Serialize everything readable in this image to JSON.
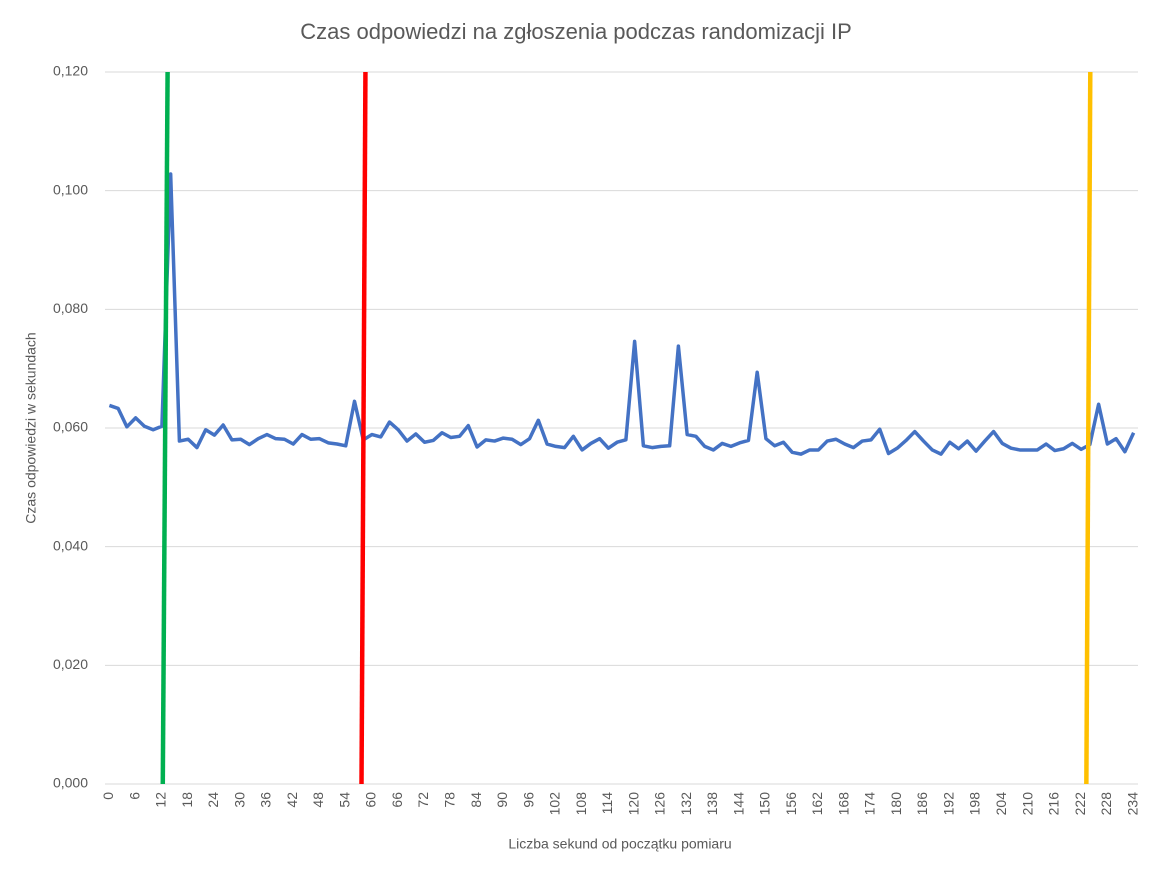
{
  "chart_data": {
    "type": "line",
    "title": "Czas odpowiedzi na zgłoszenia podczas randomizacji IP",
    "x_label": "Liczba sekund od początku pomiaru",
    "y_label": "Czas odpowiedzi w sekundach",
    "x": [
      0,
      2,
      4,
      6,
      8,
      10,
      12,
      14,
      16,
      18,
      20,
      22,
      24,
      26,
      28,
      30,
      32,
      34,
      36,
      38,
      40,
      42,
      44,
      46,
      48,
      50,
      52,
      54,
      56,
      58,
      60,
      62,
      64,
      66,
      68,
      70,
      72,
      74,
      76,
      78,
      80,
      82,
      84,
      86,
      88,
      90,
      92,
      94,
      96,
      98,
      100,
      102,
      104,
      106,
      108,
      110,
      112,
      114,
      116,
      118,
      120,
      122,
      124,
      126,
      128,
      130,
      132,
      134,
      136,
      138,
      140,
      142,
      144,
      146,
      148,
      150,
      152,
      154,
      156,
      158,
      160,
      162,
      164,
      166,
      168,
      170,
      172,
      174,
      176,
      178,
      180,
      182,
      184,
      186,
      188,
      190,
      192,
      194,
      196,
      198,
      200,
      202,
      204,
      206,
      208,
      210,
      212,
      214,
      216,
      218,
      220,
      222,
      224,
      226,
      228,
      230,
      232,
      234
    ],
    "series": [
      {
        "color": "#4472c4",
        "values": [
          0.0638,
          0.0633,
          0.0602,
          0.0617,
          0.0603,
          0.0597,
          0.0603,
          0.1028,
          0.0578,
          0.0581,
          0.0567,
          0.0597,
          0.0588,
          0.0605,
          0.058,
          0.0581,
          0.0572,
          0.0582,
          0.0589,
          0.0582,
          0.0581,
          0.0573,
          0.0589,
          0.0581,
          0.0582,
          0.0575,
          0.0573,
          0.057,
          0.0645,
          0.058,
          0.0589,
          0.0585,
          0.061,
          0.0597,
          0.0578,
          0.059,
          0.0576,
          0.0579,
          0.0592,
          0.0584,
          0.0586,
          0.0604,
          0.0568,
          0.058,
          0.0578,
          0.0583,
          0.0581,
          0.0572,
          0.0582,
          0.0613,
          0.0573,
          0.0569,
          0.0567,
          0.0586,
          0.0563,
          0.0574,
          0.0582,
          0.0566,
          0.0576,
          0.058,
          0.0746,
          0.057,
          0.0567,
          0.0569,
          0.057,
          0.0738,
          0.0589,
          0.0586,
          0.0569,
          0.0563,
          0.0574,
          0.0569,
          0.0575,
          0.0579,
          0.0694,
          0.0582,
          0.057,
          0.0576,
          0.0559,
          0.0556,
          0.0563,
          0.0563,
          0.0578,
          0.0581,
          0.0573,
          0.0567,
          0.0578,
          0.058,
          0.0598,
          0.0557,
          0.0566,
          0.0579,
          0.0594,
          0.0578,
          0.0563,
          0.0556,
          0.0576,
          0.0565,
          0.0578,
          0.0561,
          0.0578,
          0.0594,
          0.0574,
          0.0566,
          0.0563,
          0.0563,
          0.0563,
          0.0573,
          0.0562,
          0.0565,
          0.0574,
          0.0564,
          0.0572,
          0.064,
          0.0573,
          0.0582,
          0.056,
          0.0592
        ]
      }
    ],
    "markers": [
      {
        "color": "#00b050",
        "x": [
          12.2,
          13.3
        ],
        "y": [
          0,
          0.12
        ]
      },
      {
        "color": "#ff0000",
        "x": [
          57.6,
          58.5
        ],
        "y": [
          0,
          0.12
        ]
      },
      {
        "color": "#ffc000",
        "x": [
          223.2,
          224.1
        ],
        "y": [
          0,
          0.12
        ]
      }
    ],
    "xlim": [
      -1,
      235
    ],
    "xticks": [
      0,
      6,
      12,
      18,
      24,
      30,
      36,
      42,
      48,
      54,
      60,
      66,
      72,
      78,
      84,
      90,
      96,
      102,
      108,
      114,
      120,
      126,
      132,
      138,
      144,
      150,
      156,
      162,
      168,
      174,
      180,
      186,
      192,
      198,
      204,
      210,
      216,
      222,
      228,
      234
    ],
    "ylim": [
      0,
      0.12
    ],
    "yticks": [
      {
        "value": 0,
        "label": "0,000"
      },
      {
        "value": 0.02,
        "label": "0,020"
      },
      {
        "value": 0.04,
        "label": "0,040"
      },
      {
        "value": 0.06,
        "label": "0,060"
      },
      {
        "value": 0.08,
        "label": "0,080"
      },
      {
        "value": 0.1,
        "label": "0,100"
      },
      {
        "value": 0.12,
        "label": "0,120"
      }
    ],
    "grid": true
  }
}
